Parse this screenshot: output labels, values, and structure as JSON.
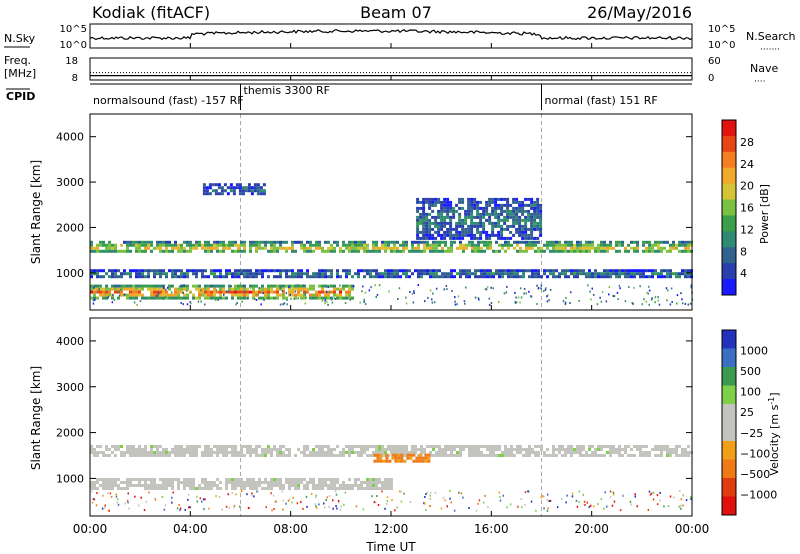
{
  "header": {
    "station": "Kodiak (fitACF)",
    "beam": "Beam 07",
    "date": "26/May/2016"
  },
  "left_labels": {
    "nsky": "N.Sky",
    "freq_line1": "Freq.",
    "freq_line2": "[MHz]",
    "cpid": "CPID"
  },
  "right_labels": {
    "nsearch": "N.Search",
    "nsearch_dots": "·······",
    "nave": "Nave",
    "nave_dots": "····"
  },
  "noise_panel": {
    "left_ticks": [
      "10^5",
      "10^0"
    ],
    "right_ticks": [
      "10^5",
      "10^0"
    ]
  },
  "freq_panel": {
    "left_ticks": [
      "18",
      "8"
    ],
    "right_ticks": [
      "60",
      "0"
    ],
    "freq_value_mhz": 10,
    "nave_value": 20
  },
  "cpid_panel": {
    "segments": [
      {
        "label": "normalsound (fast) -157 RF",
        "start_hour": 0,
        "end_hour": 6
      },
      {
        "label": "themis 3300 RF",
        "start_hour": 6,
        "end_hour": 18
      },
      {
        "label": "normal (fast) 151 RF",
        "start_hour": 18,
        "end_hour": 24
      }
    ]
  },
  "chart_data": [
    {
      "type": "heatmap",
      "title": "",
      "xlabel": "Time UT",
      "ylabel": "Slant Range [km]",
      "x_range_hours": [
        0,
        24
      ],
      "x_ticks": [
        "00:00",
        "04:00",
        "08:00",
        "12:00",
        "16:00",
        "20:00",
        "00:00"
      ],
      "ylim": [
        180,
        4500
      ],
      "y_ticks": [
        1000,
        2000,
        3000,
        4000
      ],
      "colorbar": {
        "label": "Power [dB]",
        "range": [
          0,
          32
        ],
        "ticks": [
          4,
          8,
          12,
          16,
          20,
          24,
          28
        ],
        "colors": [
          "#1a1aff",
          "#2a3fae",
          "#31638e",
          "#2f8a72",
          "#3a9e4a",
          "#7ac043",
          "#d6c437",
          "#f0a92a",
          "#f57e20",
          "#e84517",
          "#e0130f"
        ]
      },
      "regions": [
        {
          "name": "band-1600",
          "start_hour": 0,
          "end_hour": 24,
          "center_km": 1580,
          "width_km": 250,
          "level": 0.55
        },
        {
          "name": "band-1000",
          "start_hour": 0,
          "end_hour": 24,
          "center_km": 1000,
          "width_km": 160,
          "level": 0.25
        },
        {
          "name": "band-600",
          "start_hour": 0,
          "end_hour": 10.5,
          "center_km": 600,
          "width_km": 280,
          "level": 0.75
        },
        {
          "name": "arc-evening",
          "start_hour": 13,
          "end_hour": 18,
          "center_km": 2200,
          "width_km": 900,
          "level": 0.25
        },
        {
          "name": "patch-3000",
          "start_hour": 4.5,
          "end_hour": 7,
          "center_km": 2850,
          "width_km": 250,
          "level": 0.2
        }
      ]
    },
    {
      "type": "heatmap",
      "title": "",
      "xlabel": "Time UT",
      "ylabel": "Slant Range [km]",
      "x_range_hours": [
        0,
        24
      ],
      "x_ticks": [
        "00:00",
        "04:00",
        "08:00",
        "12:00",
        "16:00",
        "20:00",
        "00:00"
      ],
      "ylim": [
        180,
        4500
      ],
      "y_ticks": [
        1000,
        2000,
        3000,
        4000
      ],
      "colorbar": {
        "label": "Velocity [m s^-1]",
        "ticks": [
          "1000",
          "500",
          "100",
          "25",
          "−25",
          "−100",
          "−500",
          "−1000"
        ],
        "colors": [
          "#2233bb",
          "#3b6fc0",
          "#3a9a4d",
          "#7ed04a",
          "#c4c4be",
          "#c4c4be",
          "#f0a018",
          "#f07a18",
          "#e03c12",
          "#e0100d"
        ]
      },
      "regions": [
        {
          "name": "ground-1600",
          "start_hour": 0,
          "end_hour": 24,
          "center_km": 1600,
          "width_km": 260,
          "level": "ground"
        },
        {
          "name": "ground-900",
          "start_hour": 0,
          "end_hour": 12,
          "center_km": 900,
          "width_km": 220,
          "level": "ground"
        },
        {
          "name": "flow-1450",
          "start_hour": 11.3,
          "end_hour": 13.5,
          "center_km": 1450,
          "width_km": 180,
          "level": "-500"
        }
      ]
    }
  ]
}
